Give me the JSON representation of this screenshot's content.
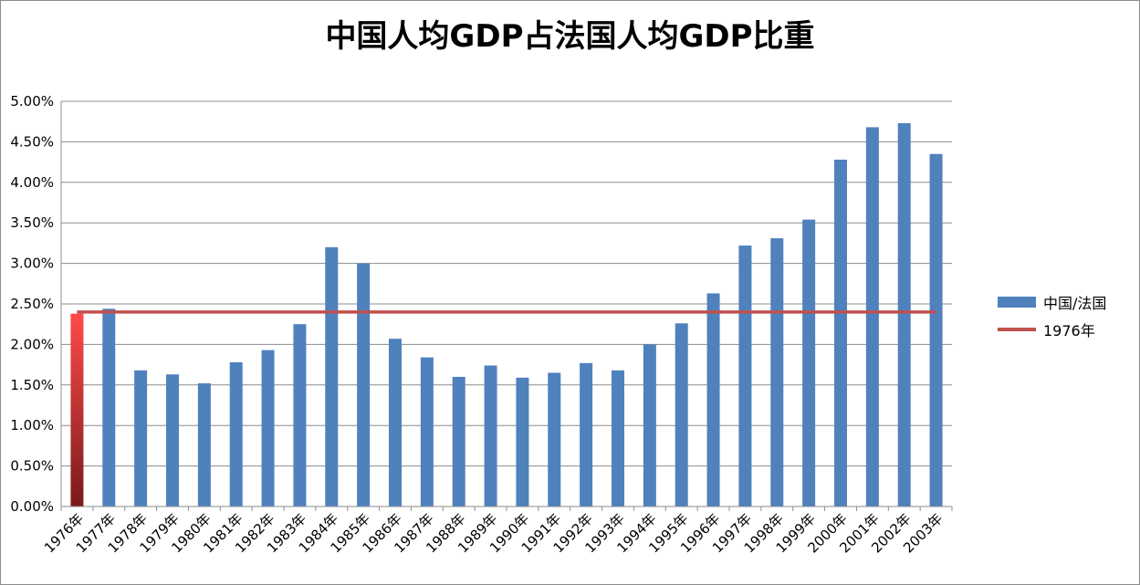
{
  "chart_data": {
    "type": "bar",
    "title": "中国人均GDP占法国人均GDP比重",
    "xlabel": "",
    "ylabel": "",
    "ylim": [
      0,
      0.05
    ],
    "yticks": [
      "0.00%",
      "0.50%",
      "1.00%",
      "1.50%",
      "2.00%",
      "2.50%",
      "3.00%",
      "3.50%",
      "4.00%",
      "4.50%",
      "5.00%"
    ],
    "grid": true,
    "legend_position": "right",
    "categories": [
      "1976年",
      "1977年",
      "1978年",
      "1979年",
      "1980年",
      "1981年",
      "1982年",
      "1983年",
      "1984年",
      "1985年",
      "1986年",
      "1987年",
      "1988年",
      "1989年",
      "1990年",
      "1991年",
      "1992年",
      "1993年",
      "1994年",
      "1995年",
      "1996年",
      "1997年",
      "1998年",
      "1999年",
      "2000年",
      "2001年",
      "2002年",
      "2003年"
    ],
    "series": [
      {
        "name": "中国/法国",
        "type": "bar",
        "color": "#4f81bd",
        "values": [
          0.0238,
          0.0244,
          0.0168,
          0.0163,
          0.0152,
          0.0178,
          0.0193,
          0.0225,
          0.032,
          0.03,
          0.0207,
          0.0184,
          0.016,
          0.0174,
          0.0159,
          0.0165,
          0.0177,
          0.0168,
          0.02,
          0.0226,
          0.0263,
          0.0322,
          0.0331,
          0.0354,
          0.0428,
          0.0468,
          0.0473,
          0.0435
        ]
      },
      {
        "name": "1976年",
        "type": "line",
        "color": "#c0504d",
        "value": 0.024
      }
    ],
    "highlight_first_bar_color": "#e03a3a"
  }
}
